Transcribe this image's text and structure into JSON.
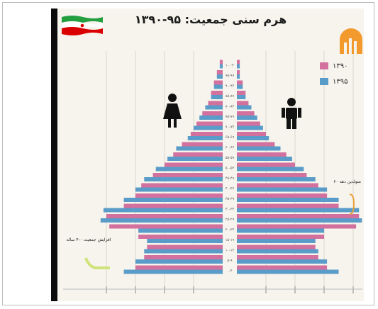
{
  "chart_data": {
    "type": "bar",
    "title": "هرم سنی جمعیت: ۹۵-۱۳۹۰",
    "legend_position": "top-right",
    "series": [
      {
        "name": "۱۳۹۰",
        "color": "#d2709e"
      },
      {
        "name": "۱۳۹۵",
        "color": "#5a9cc9"
      }
    ],
    "age_groups": [
      "۰-۴",
      "۵-۹",
      "۱۰-۱۴",
      "۱۵-۱۹",
      "۲۰-۲۴",
      "۲۵-۲۹",
      "۳۰-۳۴",
      "۳۵-۳۹",
      "۴۰-۴۴",
      "۴۵-۴۹",
      "۵۰-۵۴",
      "۵۵-۵۹",
      "۶۰-۶۴",
      "۶۵-۶۹",
      "۷۰-۷۴",
      "۷۵-۷۹",
      "۸۰-۸۴",
      "۸۵-۸۹",
      "۹۰-۹۴",
      "۹۵-۹۹",
      "۱۰۰+"
    ],
    "female": {
      "1390": [
        3.0,
        2.7,
        2.6,
        2.9,
        3.9,
        4.0,
        3.4,
        3.0,
        2.8,
        2.4,
        2.0,
        1.7,
        1.4,
        1.1,
        0.9,
        0.7,
        0.5,
        0.4,
        0.3,
        0.2,
        0.1
      ],
      "1395": [
        3.4,
        3.0,
        2.7,
        2.6,
        2.9,
        4.2,
        4.1,
        3.4,
        3.0,
        2.7,
        2.3,
        1.9,
        1.6,
        1.2,
        1.0,
        0.8,
        0.6,
        0.4,
        0.3,
        0.2,
        0.1
      ]
    },
    "male": {
      "1390": [
        3.1,
        2.8,
        2.7,
        3.0,
        4.1,
        4.2,
        3.5,
        3.1,
        2.8,
        2.4,
        2.0,
        1.7,
        1.3,
        1.0,
        0.8,
        0.6,
        0.4,
        0.3,
        0.2,
        0.1,
        0.1
      ],
      "1395": [
        3.5,
        3.1,
        2.8,
        2.7,
        3.0,
        4.3,
        4.2,
        3.5,
        3.1,
        2.7,
        2.3,
        1.9,
        1.5,
        1.1,
        0.9,
        0.7,
        0.5,
        0.3,
        0.2,
        0.1,
        0.1
      ]
    },
    "annotations": [
      "متولدین دهه ۶۰",
      "افزایش جمعیت ۰-۴ ساله"
    ],
    "grid": true
  },
  "icons": {
    "flag": "iran-flag-icon",
    "logo": "statistics-center-logo-icon",
    "female": "female-figure-icon",
    "male": "male-figure-icon"
  },
  "colors": {
    "flag_green": "#239f40",
    "flag_red": "#da0000",
    "logo_orange": "#f29a2e",
    "bracket": "#e8a23a",
    "highlight": "#cfe37a"
  }
}
